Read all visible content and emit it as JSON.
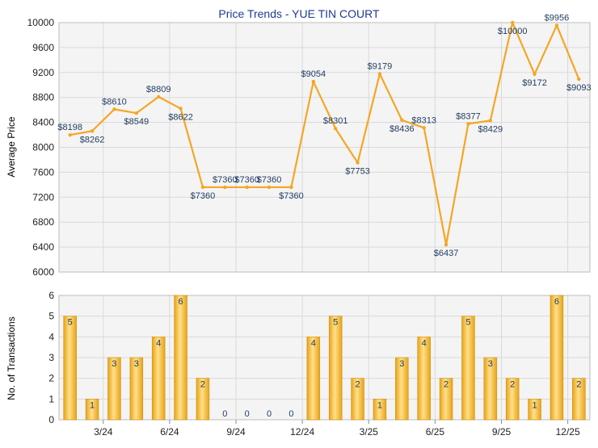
{
  "colors": {
    "line": "#F5A623",
    "bar_light": "#FFE08A",
    "bar_dark": "#E8A317",
    "bar_edge": "#D48F0A",
    "grid": "#D9D9D9",
    "plot_bg": "#F4F4F4",
    "title": "#1F3A93",
    "label": "#1F3A5F"
  },
  "chart_data": [
    {
      "type": "line",
      "title": "Price Trends - YUE TIN COURT",
      "ylabel": "Average Price",
      "ylim": [
        6000,
        10000
      ],
      "yticks": [
        6000,
        6400,
        6800,
        7200,
        7600,
        8000,
        8400,
        8800,
        9200,
        9600,
        10000
      ],
      "grid": true,
      "values": [
        8198,
        8262,
        8610,
        8549,
        8809,
        8622,
        7360,
        7360,
        7360,
        7360,
        7360,
        9054,
        8301,
        7753,
        9179,
        8436,
        8313,
        6437,
        8377,
        8429,
        10000,
        9172,
        9956,
        9093
      ],
      "labels": [
        "$8198",
        "$8262",
        "$8610",
        "$8549",
        "$8809",
        "$8622",
        "$7360",
        "$7360",
        "$7360",
        "$7360",
        "$7360",
        "$9054",
        "$8301",
        "$7753",
        "$9179",
        "$8436",
        "$8313",
        "$6437",
        "$8377",
        "$8429",
        "$10000",
        "$9172",
        "$9956",
        "$9093"
      ]
    },
    {
      "type": "bar",
      "ylabel": "No. of Transactions",
      "ylim": [
        0,
        6
      ],
      "yticks": [
        0,
        1,
        2,
        3,
        4,
        5,
        6
      ],
      "grid": true,
      "values": [
        5,
        1,
        3,
        3,
        4,
        6,
        2,
        0,
        0,
        0,
        0,
        4,
        5,
        2,
        1,
        3,
        4,
        2,
        5,
        3,
        2,
        1,
        6,
        2
      ],
      "xtick_labels": [
        {
          "index": 2,
          "label": "3/24"
        },
        {
          "index": 5,
          "label": "6/24"
        },
        {
          "index": 8,
          "label": "9/24"
        },
        {
          "index": 11,
          "label": "12/24"
        },
        {
          "index": 14,
          "label": "3/25"
        },
        {
          "index": 17,
          "label": "6/25"
        },
        {
          "index": 20,
          "label": "9/25"
        },
        {
          "index": 23,
          "label": "12/25"
        }
      ]
    }
  ]
}
